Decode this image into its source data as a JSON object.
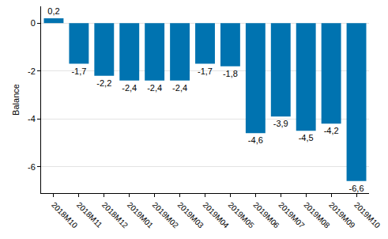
{
  "chart_data": {
    "type": "bar",
    "y_label": "Balance",
    "categories": [
      "2018M10",
      "2018M11",
      "2018M12",
      "2019M01",
      "2019M02",
      "2019M03",
      "2019M04",
      "2019M05",
      "2019M06",
      "2019M07",
      "2019M08",
      "2019M09",
      "2019M10"
    ],
    "values": [
      0.2,
      -1.7,
      -2.2,
      -2.4,
      -2.4,
      -2.4,
      -1.7,
      -1.8,
      -4.6,
      -3.9,
      -4.5,
      -4.2,
      -6.6
    ],
    "value_labels": [
      "0,2",
      "-1,7",
      "-2,2",
      "-2,4",
      "-2,4",
      "-2,4",
      "-1,7",
      "-1,8",
      "-4,6",
      "-3,9",
      "-4,5",
      "-4,2",
      "-6,6"
    ],
    "color": "#0073b0",
    "ylim": [
      -7.1,
      0.7
    ],
    "yticks": [
      -6,
      -4,
      -2,
      0
    ],
    "grid": true,
    "data_labels": true
  }
}
